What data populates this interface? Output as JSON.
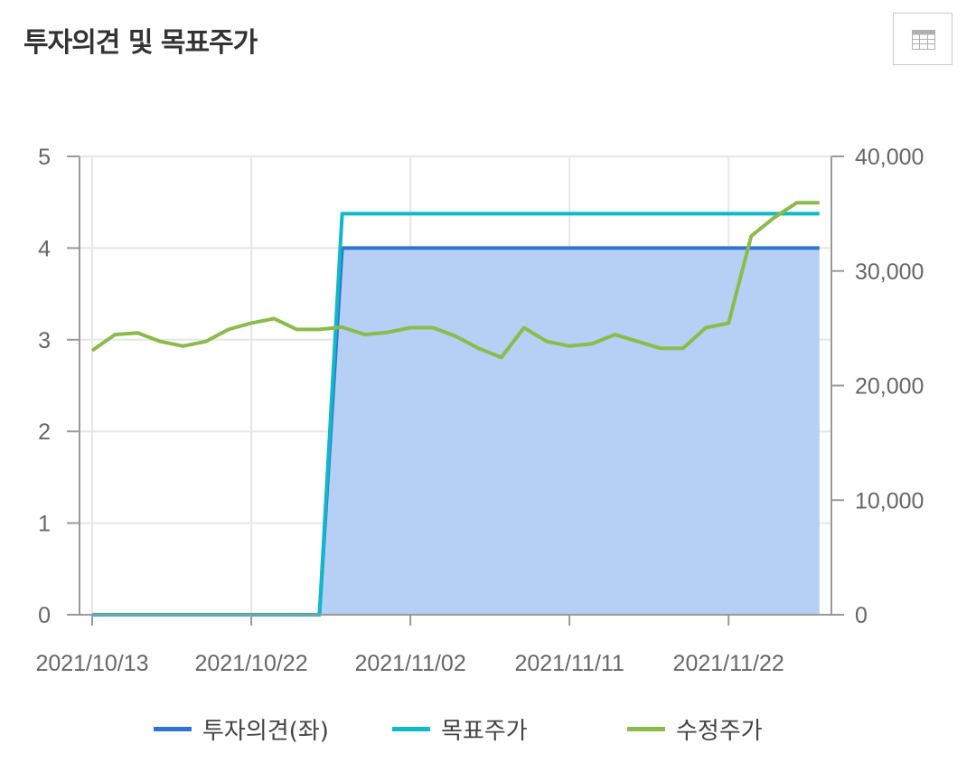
{
  "header": {
    "title": "투자의견 및 목표주가"
  },
  "toolbar": {
    "table_view_icon": "table-icon"
  },
  "colors": {
    "opinion": "#2f74d0",
    "opinion_fill": "#b5d0f4",
    "target": "#10b8c8",
    "price": "#8bbb4a",
    "grid": "#e6e6e6",
    "axis": "#999999"
  },
  "chart_data": {
    "type": "line",
    "x_ticks": [
      "2021/10/13",
      "2021/10/22",
      "2021/11/02",
      "2021/11/11",
      "2021/11/22"
    ],
    "y_left": {
      "ticks": [
        "0",
        "1",
        "2",
        "3",
        "4",
        "5"
      ],
      "ylim": [
        0,
        5
      ]
    },
    "y_right": {
      "ticks": [
        "0",
        "10,000",
        "20,000",
        "30,000",
        "40,000"
      ],
      "ylim": [
        0,
        40000
      ]
    },
    "grid": true,
    "legend_position": "bottom",
    "x": [
      "2021/10/13",
      "2021/10/14",
      "2021/10/15",
      "2021/10/18",
      "2021/10/19",
      "2021/10/20",
      "2021/10/21",
      "2021/10/22",
      "2021/10/25",
      "2021/10/26",
      "2021/10/27",
      "2021/10/28",
      "2021/10/29",
      "2021/11/01",
      "2021/11/02",
      "2021/11/03",
      "2021/11/04",
      "2021/11/05",
      "2021/11/08",
      "2021/11/09",
      "2021/11/10",
      "2021/11/11",
      "2021/11/12",
      "2021/11/15",
      "2021/11/16",
      "2021/11/17",
      "2021/11/18",
      "2021/11/19",
      "2021/11/22",
      "2021/11/23",
      "2021/11/24",
      "2021/11/25",
      "2021/11/26"
    ],
    "series": [
      {
        "name": "투자의견(좌)",
        "axis": "left",
        "type": "area",
        "values": [
          0,
          0,
          0,
          0,
          0,
          0,
          0,
          0,
          0,
          0,
          0,
          4,
          4,
          4,
          4,
          4,
          4,
          4,
          4,
          4,
          4,
          4,
          4,
          4,
          4,
          4,
          4,
          4,
          4,
          4,
          4,
          4,
          4
        ]
      },
      {
        "name": "목표주가",
        "axis": "right",
        "type": "line",
        "values": [
          0,
          0,
          0,
          0,
          0,
          0,
          0,
          0,
          0,
          0,
          0,
          35000,
          35000,
          35000,
          35000,
          35000,
          35000,
          35000,
          35000,
          35000,
          35000,
          35000,
          35000,
          35000,
          35000,
          35000,
          35000,
          35000,
          35000,
          35000,
          35000,
          35000,
          35000
        ]
      },
      {
        "name": "수정주가",
        "axis": "right",
        "type": "line",
        "values": [
          23050,
          24450,
          24600,
          23850,
          23450,
          23850,
          24900,
          25450,
          25850,
          24900,
          24900,
          25100,
          24450,
          24650,
          25050,
          25050,
          24300,
          23250,
          22450,
          25050,
          23850,
          23450,
          23650,
          24450,
          23850,
          23250,
          23250,
          25050,
          25450,
          33050,
          34650,
          35950,
          35950
        ]
      }
    ]
  }
}
